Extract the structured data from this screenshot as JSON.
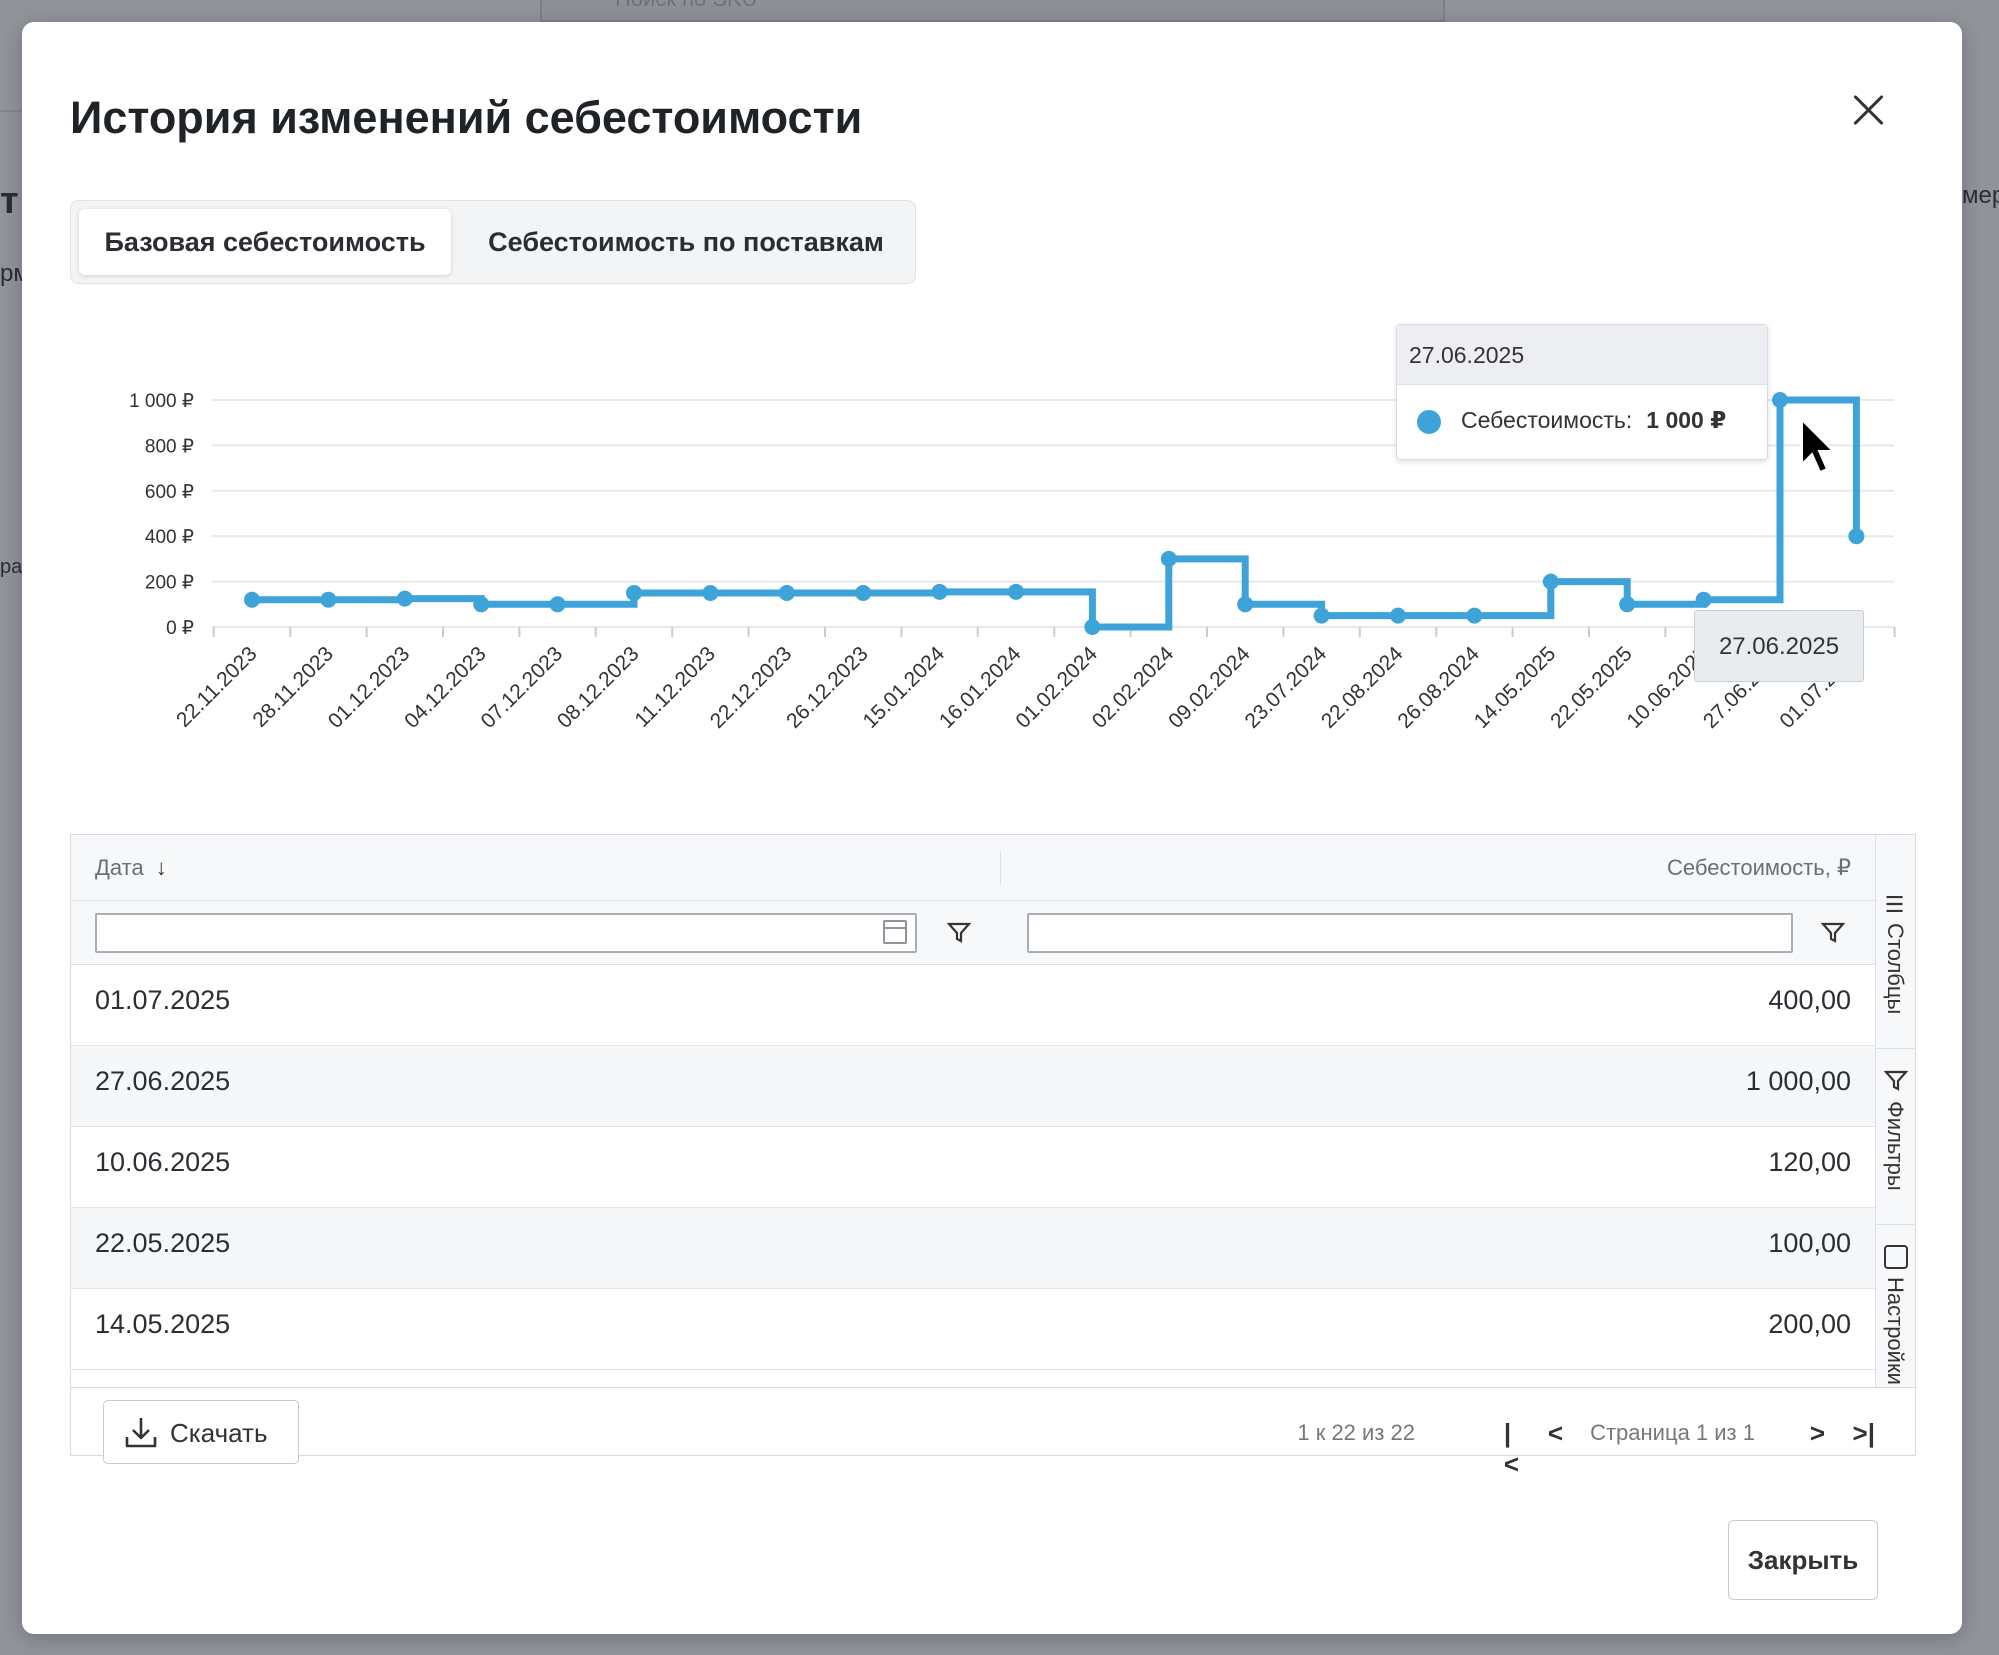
{
  "background": {
    "search_placeholder": "Поиск по SKU",
    "fragments": [
      "т",
      "рм",
      "ра",
      "мер"
    ]
  },
  "modal": {
    "title": "История изменений себестоимости",
    "tabs": [
      {
        "label": "Базовая себестоимость",
        "active": true
      },
      {
        "label": "Себестоимость по поставкам",
        "active": false
      }
    ],
    "close_label": "Закрыть"
  },
  "chart_data": {
    "type": "line",
    "step": true,
    "series": [
      {
        "name": "Себестоимость",
        "color": "#3ea3d8"
      }
    ],
    "x": [
      "22.11.2023",
      "28.11.2023",
      "01.12.2023",
      "04.12.2023",
      "07.12.2023",
      "08.12.2023",
      "11.12.2023",
      "22.12.2023",
      "26.12.2023",
      "15.01.2024",
      "16.01.2024",
      "01.02.2024",
      "02.02.2024",
      "09.02.2024",
      "23.07.2024",
      "22.08.2024",
      "26.08.2024",
      "14.05.2025",
      "22.05.2025",
      "10.06.2025",
      "27.06.2025",
      "01.07.2025"
    ],
    "values": [
      120,
      120,
      125,
      100,
      100,
      150,
      150,
      150,
      150,
      155,
      155,
      0,
      300,
      100,
      50,
      50,
      50,
      200,
      100,
      120,
      1000,
      400
    ],
    "y_ticks": [
      "0 ₽",
      "200 ₽",
      "400 ₽",
      "600 ₽",
      "800 ₽",
      "1 000 ₽"
    ],
    "ylim": [
      0,
      1000
    ],
    "grid": true
  },
  "tooltip": {
    "date": "27.06.2025",
    "label": "Себестоимость:",
    "value": "1 000 ₽",
    "x_tip": "27.06.2025"
  },
  "table": {
    "columns": {
      "date": "Дата",
      "cost": "Себестоимость, ₽"
    },
    "rows": [
      {
        "date": "01.07.2025",
        "cost": "400,00"
      },
      {
        "date": "27.06.2025",
        "cost": "1 000,00"
      },
      {
        "date": "10.06.2025",
        "cost": "120,00"
      },
      {
        "date": "22.05.2025",
        "cost": "100,00"
      },
      {
        "date": "14.05.2025",
        "cost": "200,00"
      }
    ],
    "side_tabs": [
      "Столбцы",
      "Фильтры",
      "Настройки"
    ],
    "download_label": "Скачать",
    "pager_count": "1 к 22 из 22",
    "pager_label": "Страница 1 из 1",
    "pager_buttons": [
      "|<",
      "<",
      ">",
      ">|"
    ]
  }
}
